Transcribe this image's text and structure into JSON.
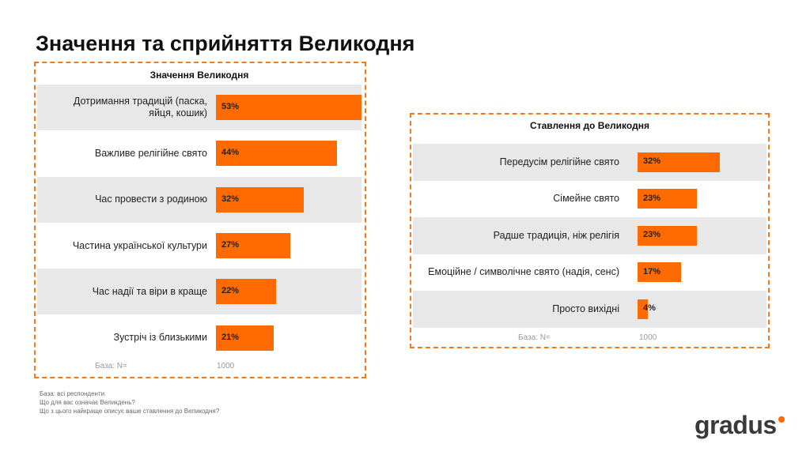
{
  "title": "Значення та сприйняття Великодня",
  "chart_data": [
    {
      "type": "bar",
      "orientation": "horizontal",
      "title": "Значення Великодня",
      "categories": [
        "Дотримання традицій (паска, яйця, кошик)",
        "Важливе релігійне свято",
        "Час провести з родиною",
        "Частина української культури",
        "Час надії та віри в краще",
        "Зустріч із близькими"
      ],
      "values": [
        53,
        44,
        32,
        27,
        22,
        21
      ],
      "value_labels": [
        "53%",
        "44%",
        "32%",
        "27%",
        "22%",
        "21%"
      ],
      "color": "#ff6b00",
      "base": {
        "label": "База: N=",
        "value": 1000
      }
    },
    {
      "type": "bar",
      "orientation": "horizontal",
      "title": "Ставлення до Великодня",
      "categories": [
        "Передусім релігійне свято",
        "Сімейне свято",
        "Радше традиція, ніж релігія",
        "Емоційне / символічне свято (надія, сенс)",
        "Просто вихідні"
      ],
      "values": [
        32,
        23,
        23,
        17,
        4
      ],
      "value_labels": [
        "32%",
        "23%",
        "23%",
        "17%",
        "4%"
      ],
      "color": "#ff6b00",
      "base": {
        "label": "База: N=",
        "value": 1000
      }
    }
  ],
  "notes": [
    "База: всі респонденти",
    "Що для вас означає Великдень?",
    "Що з цього найкраще описує ваше ставлення до Великодня?"
  ],
  "logo": "gradus"
}
